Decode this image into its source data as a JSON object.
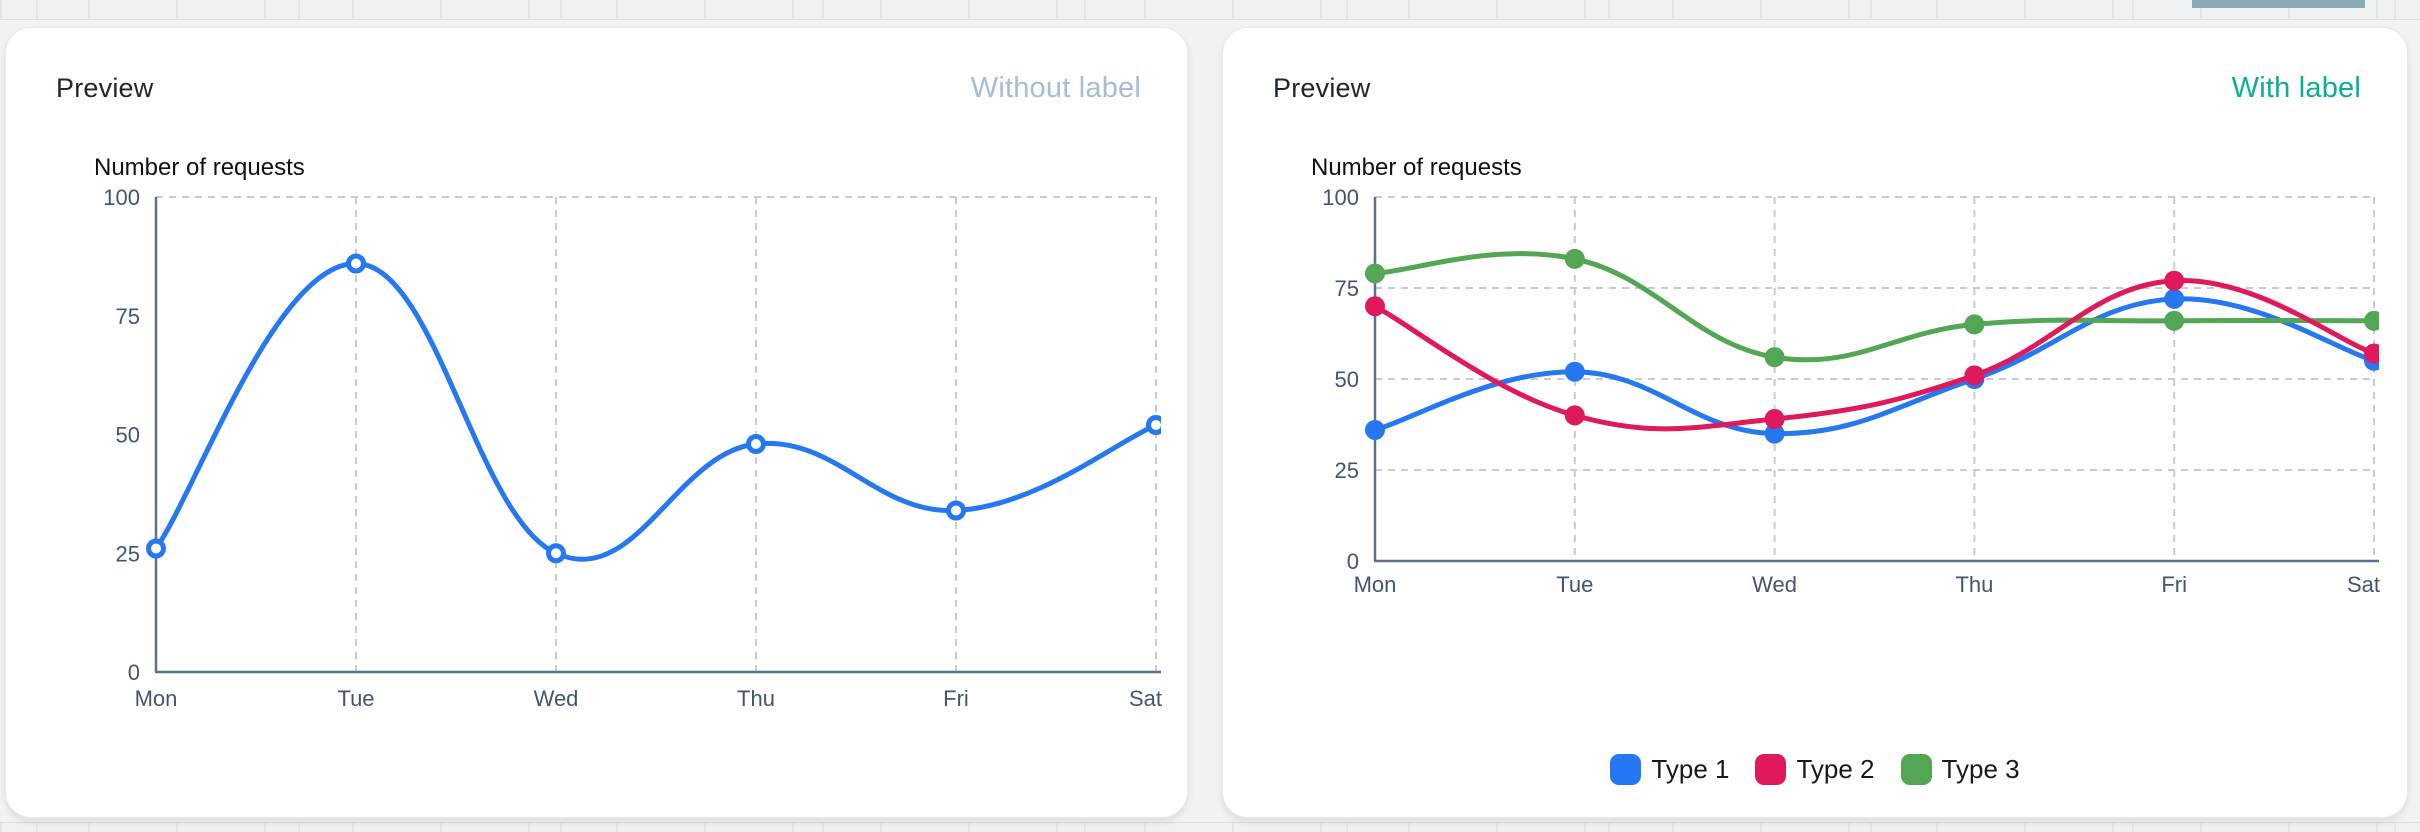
{
  "page": {
    "background_accent_color": "#87a9b1"
  },
  "cards": [
    {
      "title": "Preview",
      "variant_label": "Without label",
      "variant_color": "#a6bdd3"
    },
    {
      "title": "Preview",
      "variant_label": "With label",
      "variant_color": "#0bae93"
    }
  ],
  "colors": {
    "axis_line": "#5f6e8e",
    "tick_text": "#44546f",
    "gridline": "#c7ccd4",
    "blue": "#2577f2",
    "red": "#e0195d",
    "green": "#53a653"
  },
  "chart_data": [
    {
      "type": "line",
      "title": "Number of requests",
      "categories": [
        "Mon",
        "Tue",
        "Wed",
        "Thu",
        "Fri",
        "Sat"
      ],
      "xlabel": "",
      "ylabel": "",
      "ylim": [
        0,
        100
      ],
      "y_ticks": [
        0,
        25,
        50,
        75,
        100
      ],
      "grid": "vertical-plus-top",
      "legend_position": "none",
      "series": [
        {
          "name": "Number of requests",
          "color": "#2577f2",
          "marker": "hollow",
          "values": [
            26,
            86,
            25,
            48,
            34,
            52
          ]
        }
      ]
    },
    {
      "type": "line",
      "title": "Number of requests",
      "categories": [
        "Mon",
        "Tue",
        "Wed",
        "Thu",
        "Fri",
        "Sat"
      ],
      "xlabel": "",
      "ylabel": "",
      "ylim": [
        0,
        100
      ],
      "y_ticks": [
        0,
        25,
        50,
        75,
        100
      ],
      "grid": "full",
      "legend_position": "bottom",
      "draw_order": [
        0,
        2,
        1
      ],
      "series": [
        {
          "name": "Type 1",
          "color": "#2577f2",
          "marker": "filled",
          "values": [
            36,
            52,
            35,
            50,
            72,
            55
          ]
        },
        {
          "name": "Type 2",
          "color": "#e0195d",
          "marker": "filled",
          "values": [
            70,
            40,
            39,
            51,
            77,
            57
          ]
        },
        {
          "name": "Type 3",
          "color": "#53a653",
          "marker": "filled",
          "values": [
            79,
            83,
            56,
            65,
            66,
            66
          ]
        }
      ]
    }
  ]
}
